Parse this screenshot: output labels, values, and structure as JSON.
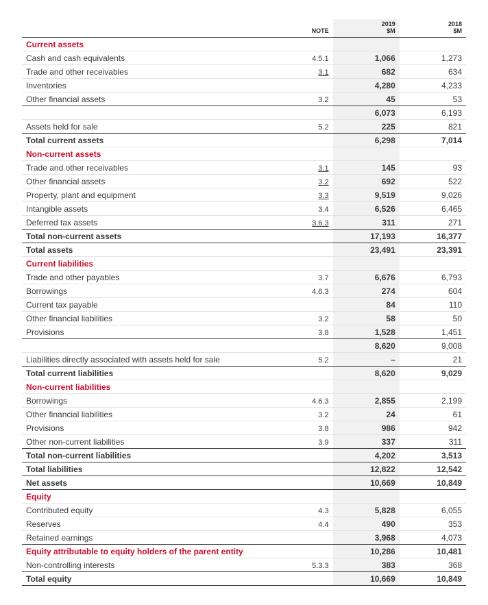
{
  "header": {
    "note": "NOTE",
    "y1": "2019\n$M",
    "y2": "2018\n$M"
  },
  "colors": {
    "accent": "#c8102e",
    "highlight_bg": "#f1f1f1",
    "rule": "#3a3a3a",
    "row_rule": "#e3e3e3"
  },
  "fonts": {
    "body_pt": 12,
    "header_pt": 9
  },
  "rows": [
    {
      "t": "section",
      "label": "Current assets"
    },
    {
      "label": "Cash and cash equivalents",
      "note": "4.5.1",
      "y1": "1,066",
      "y2": "1,273"
    },
    {
      "label": "Trade and other receivables",
      "note": "3.1",
      "note_ul": true,
      "y1": "682",
      "y2": "634"
    },
    {
      "label": "Inventories",
      "y1": "4,280",
      "y2": "4,233"
    },
    {
      "label": "Other financial assets",
      "note": "3.2",
      "y1": "45",
      "y2": "53"
    },
    {
      "t": "subtotal",
      "thick": true,
      "y1": "6,073",
      "y2": "6,193"
    },
    {
      "label": "Assets held for sale",
      "note": "5.2",
      "y1": "225",
      "y2": "821"
    },
    {
      "t": "total",
      "label": "Total current assets",
      "y1": "6,298",
      "y2": "7,014",
      "thick": true
    },
    {
      "t": "section",
      "label": "Non-current assets"
    },
    {
      "label": "Trade and other receivables",
      "note": "3.1",
      "note_ul": true,
      "y1": "145",
      "y2": "93"
    },
    {
      "label": "Other financial assets",
      "note": "3.2",
      "note_ul": true,
      "y1": "692",
      "y2": "522"
    },
    {
      "label": "Property, plant and equipment",
      "note": "3.3",
      "note_ul": true,
      "y1": "9,519",
      "y2": "9,026"
    },
    {
      "label": "Intangible assets",
      "note": "3.4",
      "y1": "6,526",
      "y2": "6,465"
    },
    {
      "label": "Deferred tax assets",
      "note": "3.6.3",
      "note_ul": true,
      "y1": "311",
      "y2": "271"
    },
    {
      "t": "total",
      "label": "Total non-current assets",
      "y1": "17,193",
      "y2": "16,377",
      "thick": true
    },
    {
      "t": "total",
      "label": "Total assets",
      "y1": "23,491",
      "y2": "23,391",
      "thick": true
    },
    {
      "t": "section",
      "label": "Current liabilities"
    },
    {
      "label": "Trade and other payables",
      "note": "3.7",
      "y1": "6,676",
      "y2": "6,793"
    },
    {
      "label": "Borrowings",
      "note": "4.6.3",
      "y1": "274",
      "y2": "604"
    },
    {
      "label": "Current tax payable",
      "y1": "84",
      "y2": "110"
    },
    {
      "label": "Other financial liabilities",
      "note": "3.2",
      "y1": "58",
      "y2": "50"
    },
    {
      "label": "Provisions",
      "note": "3.8",
      "y1": "1,528",
      "y2": "1,451"
    },
    {
      "t": "subtotal",
      "thick": true,
      "y1": "8,620",
      "y2": "9,008"
    },
    {
      "label": "Liabilities directly associated with assets held for sale",
      "note": "5.2",
      "y1": "–",
      "y2": "21"
    },
    {
      "t": "total",
      "label": "Total current liabilities",
      "y1": "8,620",
      "y2": "9,029",
      "thick": true
    },
    {
      "t": "section",
      "label": "Non-current liabilities"
    },
    {
      "label": "Borrowings",
      "note": "4.6.3",
      "y1": "2,855",
      "y2": "2,199"
    },
    {
      "label": "Other financial liabilities",
      "note": "3.2",
      "y1": "24",
      "y2": "61"
    },
    {
      "label": "Provisions",
      "note": "3.8",
      "y1": "986",
      "y2": "942"
    },
    {
      "label": "Other non-current liabilities",
      "note": "3.9",
      "y1": "337",
      "y2": "311"
    },
    {
      "t": "total",
      "label": "Total non-current liabilities",
      "y1": "4,202",
      "y2": "3,513",
      "thick": true
    },
    {
      "t": "total",
      "label": "Total liabilities",
      "y1": "12,822",
      "y2": "12,542",
      "thick": true
    },
    {
      "t": "total",
      "label": "Net assets",
      "y1": "10,669",
      "y2": "10,849",
      "thick": true,
      "thick_bottom": true
    },
    {
      "t": "section",
      "label": "Equity"
    },
    {
      "label": "Contributed equity",
      "note": "4.3",
      "y1": "5,828",
      "y2": "6,055"
    },
    {
      "label": "Reserves",
      "note": "4.4",
      "y1": "490",
      "y2": "353"
    },
    {
      "label": "Retained earnings",
      "y1": "3,968",
      "y2": "4,073"
    },
    {
      "t": "total_red",
      "label": "Equity attributable to equity holders of the parent entity",
      "y1": "10,286",
      "y2": "10,481",
      "thick": true
    },
    {
      "label": "Non-controlling interests",
      "note": "5.3.3",
      "y1": "383",
      "y2": "368"
    },
    {
      "t": "total",
      "label": "Total equity",
      "y1": "10,669",
      "y2": "10,849",
      "thick": true,
      "thick_bottom": true
    }
  ]
}
